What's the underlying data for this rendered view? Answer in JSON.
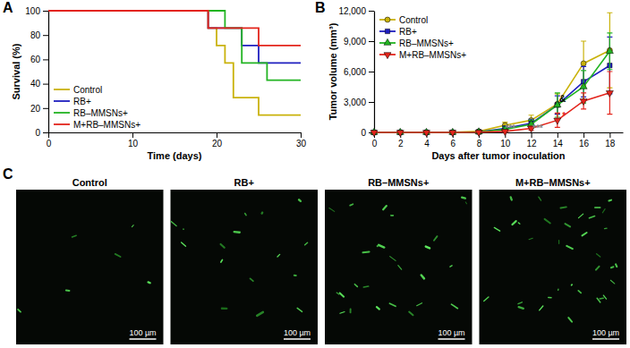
{
  "chart_data": [
    {
      "type": "step",
      "title": "A",
      "x_label": "Time (days)",
      "y_label": "Survival (%)",
      "xlim": [
        0,
        30
      ],
      "xticks": [
        0,
        10,
        20,
        30
      ],
      "ylim": [
        0,
        100
      ],
      "yticks": [
        0,
        20,
        40,
        60,
        80,
        100
      ],
      "legend": "lower left",
      "series": [
        {
          "name": "Control",
          "color": "#c9b20a",
          "line_style": "solid",
          "x": [
            0,
            19,
            20,
            21,
            22,
            25,
            30
          ],
          "values": [
            100,
            85.7,
            71.4,
            57.1,
            28.6,
            14.3,
            14.3
          ]
        },
        {
          "name": "RB+",
          "color": "#1f1fbf",
          "line_style": "solid",
          "x": [
            0,
            19,
            23,
            25,
            30
          ],
          "values": [
            100,
            85.7,
            71.4,
            57.1,
            57.1
          ]
        },
        {
          "name": "RB–MMSNs+",
          "color": "#22b422",
          "line_style": "solid",
          "x": [
            0,
            21,
            23,
            26,
            30
          ],
          "values": [
            100,
            85.7,
            57.1,
            42.9,
            42.9
          ]
        },
        {
          "name": "M+RB–MMSNs+",
          "color": "#e3241b",
          "line_style": "solid",
          "x": [
            0,
            19,
            25,
            30
          ],
          "values": [
            100,
            85.7,
            71.4,
            71.4
          ]
        }
      ]
    },
    {
      "type": "line",
      "title": "B",
      "x_label": "Days after tumor inoculation",
      "y_label": "Tumor volume (mm³)",
      "x": [
        0,
        2,
        4,
        6,
        8,
        10,
        12,
        14,
        16,
        18
      ],
      "xlim": [
        0,
        19
      ],
      "xticks": [
        0,
        2,
        4,
        6,
        8,
        10,
        12,
        14,
        16,
        18
      ],
      "ylim": [
        0,
        12000
      ],
      "yticks": [
        0,
        {
          "value": 3000,
          "label": "3,000"
        },
        {
          "value": 6000,
          "label": "6,000"
        },
        {
          "value": 9000,
          "label": "9,000"
        },
        {
          "value": 12000,
          "label": "12,000"
        }
      ],
      "legend": "upper left",
      "series": [
        {
          "name": "Control",
          "color": "#c9b20a",
          "marker": "circle",
          "values": [
            0,
            0,
            0,
            0,
            100,
            700,
            1200,
            2800,
            6800,
            8100
          ],
          "errors": [
            0,
            0,
            0,
            0,
            100,
            300,
            500,
            1000,
            2200,
            3700
          ]
        },
        {
          "name": "RB+",
          "color": "#1f1fbf",
          "marker": "square",
          "values": [
            0,
            0,
            0,
            0,
            50,
            400,
            900,
            2700,
            5000,
            6600
          ],
          "errors": [
            0,
            0,
            0,
            0,
            50,
            200,
            400,
            900,
            1500,
            2800
          ]
        },
        {
          "name": "RB–MMSNs+",
          "color": "#22b422",
          "marker": "triangle-up",
          "values": [
            0,
            0,
            0,
            0,
            50,
            300,
            800,
            2700,
            4500,
            8000
          ],
          "errors": [
            0,
            0,
            0,
            0,
            50,
            200,
            400,
            1200,
            1600,
            1800
          ]
        },
        {
          "name": "M+RB–MMSNs+",
          "color": "#e3241b",
          "marker": "triangle-down",
          "values": [
            0,
            0,
            0,
            0,
            20,
            100,
            400,
            1200,
            3100,
            3900
          ],
          "errors": [
            0,
            0,
            0,
            0,
            20,
            100,
            200,
            700,
            800,
            2100
          ]
        }
      ],
      "annotations": [
        {
          "text": "***",
          "x": 10.4,
          "y": 100,
          "color": "#888888"
        },
        {
          "text": "***",
          "x": 12.5,
          "y": 100,
          "color": "#888888"
        },
        {
          "text": "&",
          "x": 14.4,
          "y": 3000,
          "color": "#000000"
        },
        {
          "text": "*",
          "x": 14.5,
          "y": 1300,
          "color": "#e3241b"
        }
      ]
    }
  ],
  "panel_c": {
    "label": "C",
    "panels": [
      {
        "title": "Control",
        "scale_bar": "100 µm"
      },
      {
        "title": "RB+",
        "scale_bar": "100 µm"
      },
      {
        "title": "RB–MMSNs+",
        "scale_bar": "100 µm"
      },
      {
        "title": "M+RB–MMSNs+",
        "scale_bar": "100 µm"
      }
    ]
  }
}
